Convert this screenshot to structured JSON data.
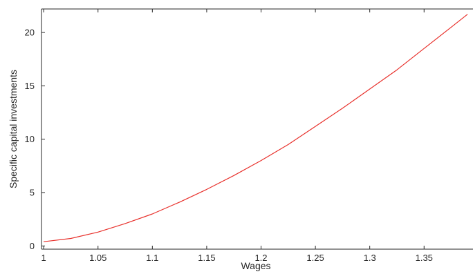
{
  "chart_data": {
    "type": "line",
    "title": "",
    "xlabel": "Wages",
    "ylabel": "Specific capital investments",
    "xlim": [
      0.998,
      1.395
    ],
    "ylim": [
      -0.3,
      22.2
    ],
    "grid": false,
    "legend": "none",
    "x_ticks": [
      {
        "value": 1,
        "label": "1"
      },
      {
        "value": 1.05,
        "label": "1.05"
      },
      {
        "value": 1.1,
        "label": "1.1"
      },
      {
        "value": 1.15,
        "label": "1.15"
      },
      {
        "value": 1.2,
        "label": "1.2"
      },
      {
        "value": 1.25,
        "label": "1.25"
      },
      {
        "value": 1.3,
        "label": "1.3"
      },
      {
        "value": 1.35,
        "label": "1.35"
      }
    ],
    "y_ticks": [
      {
        "value": 0,
        "label": "0"
      },
      {
        "value": 5,
        "label": "5"
      },
      {
        "value": 10,
        "label": "10"
      },
      {
        "value": 15,
        "label": "15"
      },
      {
        "value": 20,
        "label": "20"
      }
    ],
    "series": [
      {
        "color": "#e8302b",
        "x": [
          1.0,
          1.025,
          1.05,
          1.075,
          1.1,
          1.125,
          1.15,
          1.175,
          1.2,
          1.225,
          1.25,
          1.275,
          1.3,
          1.325,
          1.35,
          1.375,
          1.39
        ],
        "y": [
          0.4,
          0.7,
          1.3,
          2.1,
          3.0,
          4.1,
          5.3,
          6.6,
          8.0,
          9.5,
          11.2,
          12.9,
          14.7,
          16.5,
          18.5,
          20.5,
          21.7
        ]
      }
    ]
  }
}
